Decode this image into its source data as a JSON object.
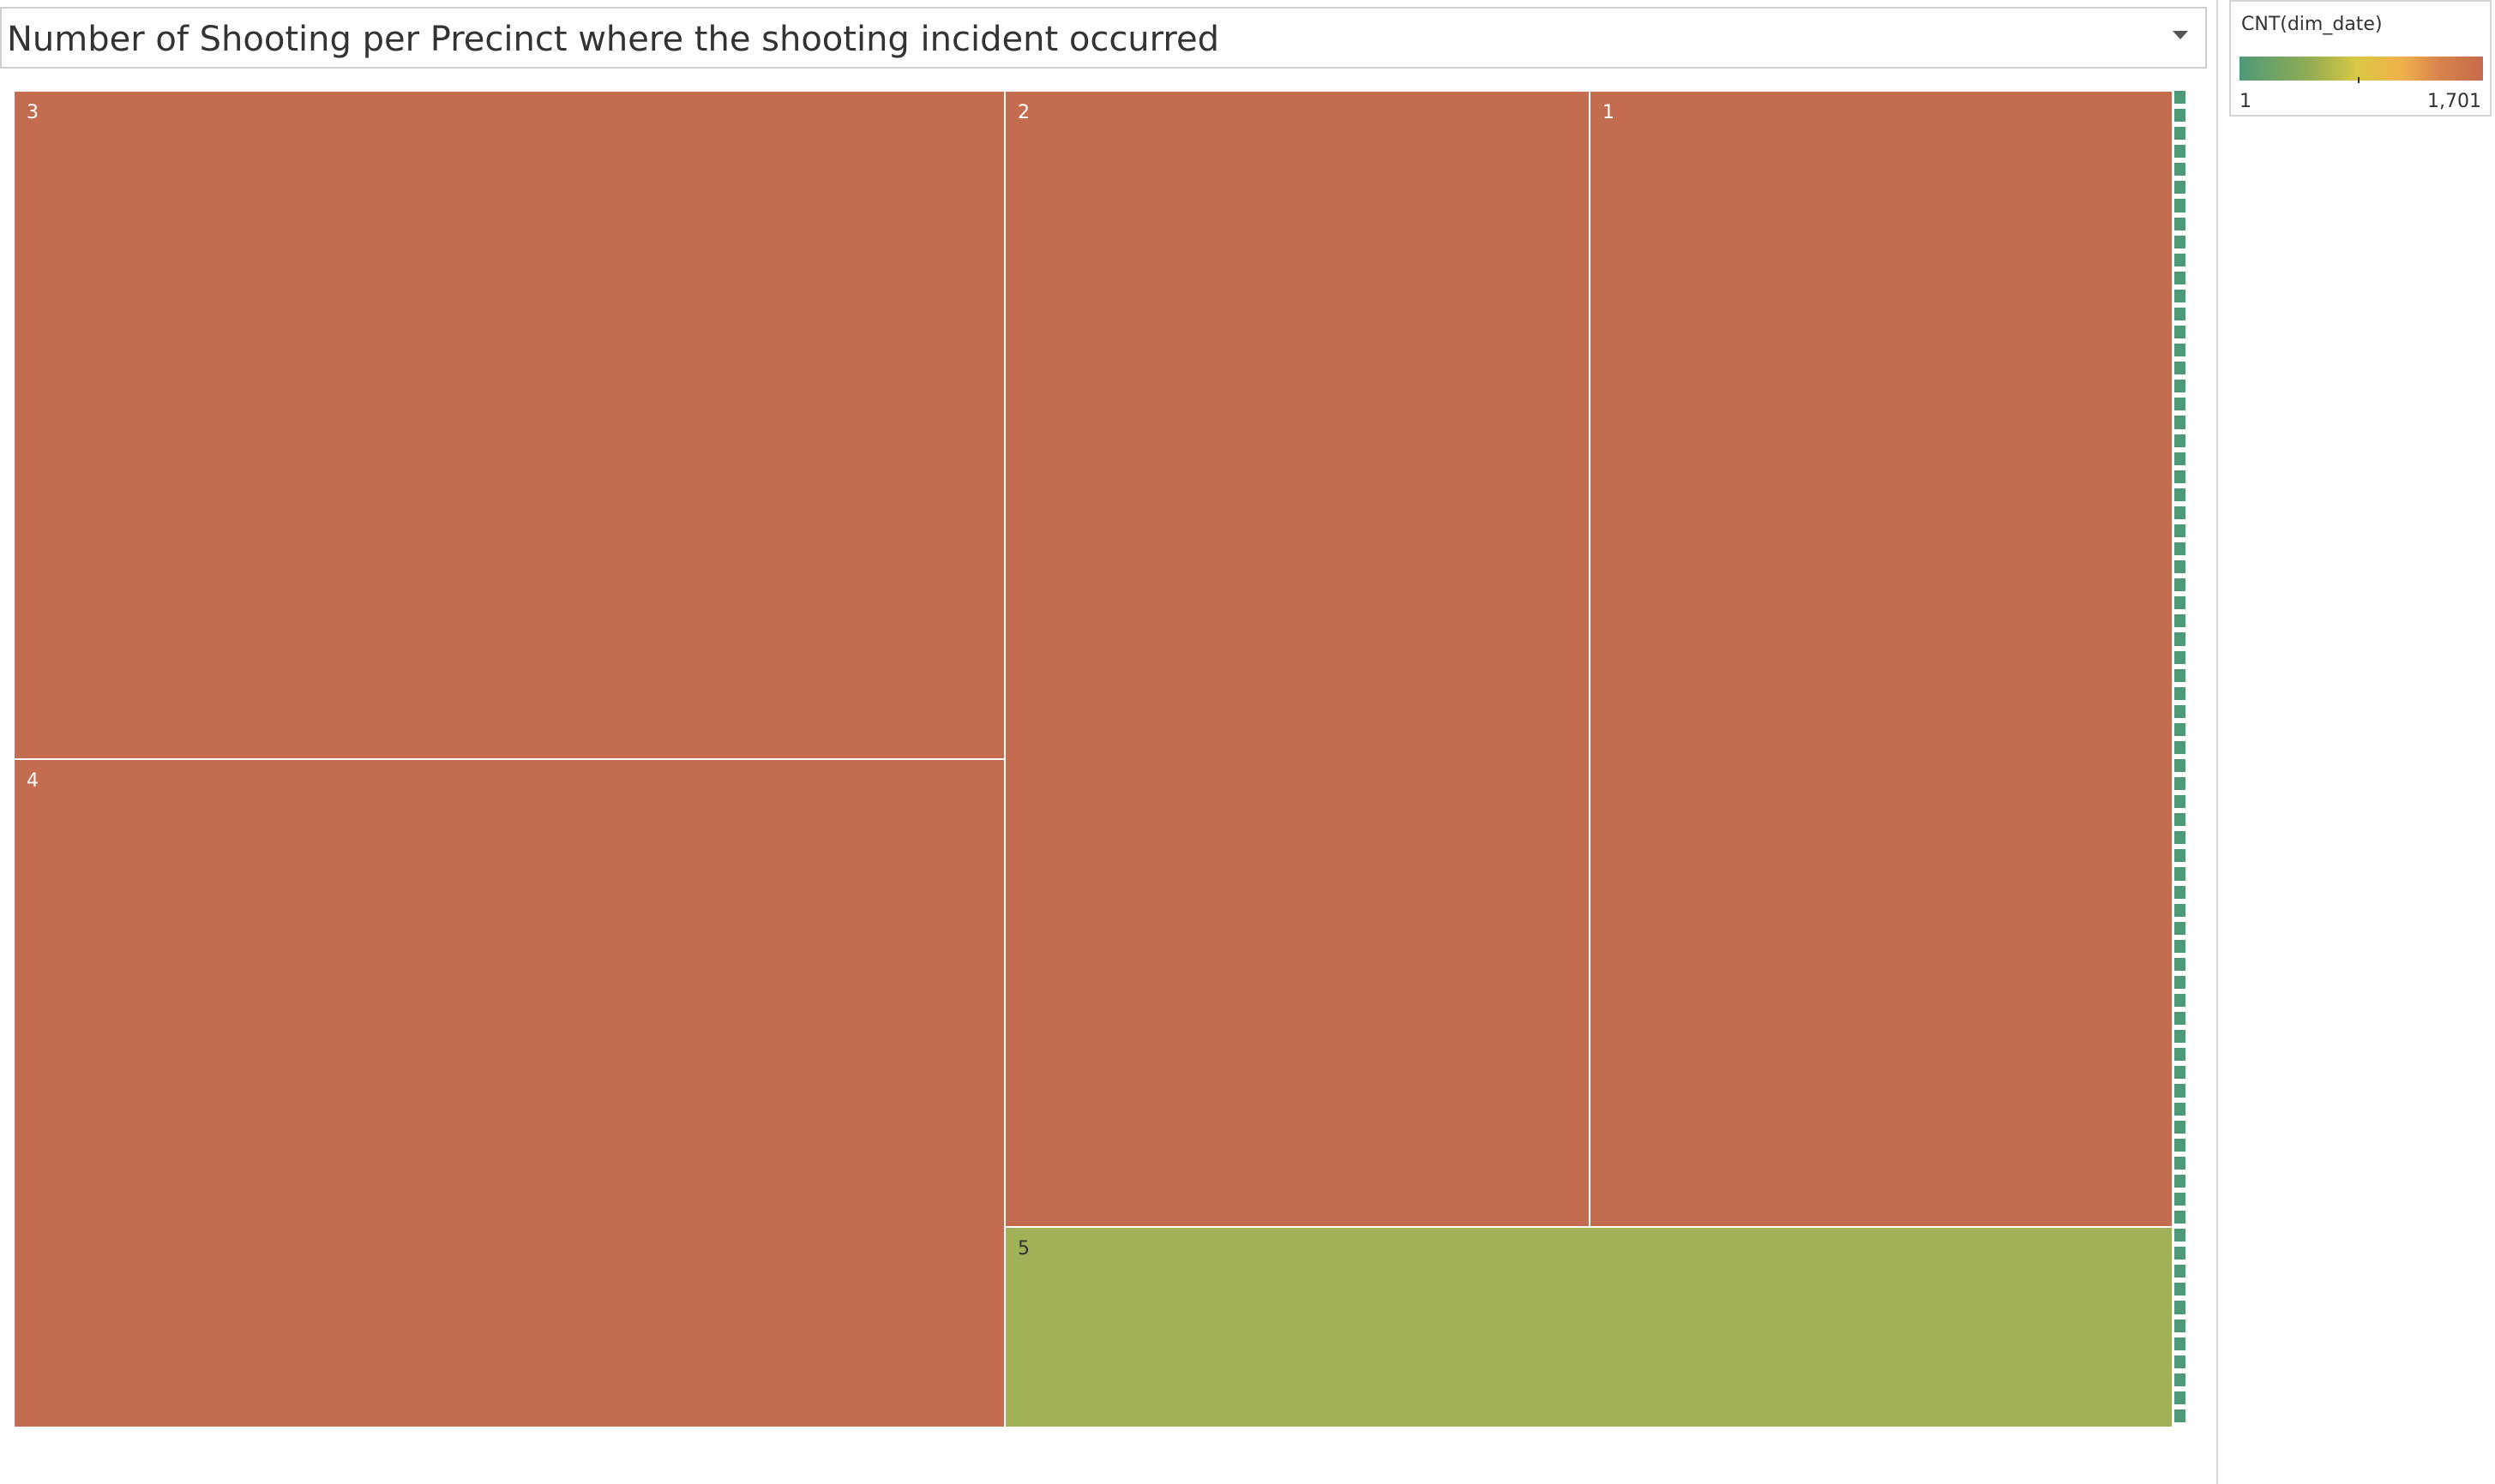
{
  "chart_data": {
    "type": "treemap",
    "title": "Number of Shooting per Precinct where the shooting incident occurred",
    "color_legend": {
      "title": "CNT(dim_date)",
      "min_label": "1",
      "max_label": "1,701"
    },
    "colors": {
      "high": "#c36c4f",
      "mid": "#a0b158",
      "low": "#4e9a78"
    },
    "tiles": [
      {
        "label": "3",
        "color": "#c36c4f"
      },
      {
        "label": "4",
        "color": "#c36c4f"
      },
      {
        "label": "2",
        "color": "#c36c4f"
      },
      {
        "label": "1",
        "color": "#c36c4f"
      },
      {
        "label": "5",
        "color": "#a0b158"
      }
    ],
    "tiny_tile_count": 74,
    "tiny_tile_color": "#4e9a78"
  }
}
